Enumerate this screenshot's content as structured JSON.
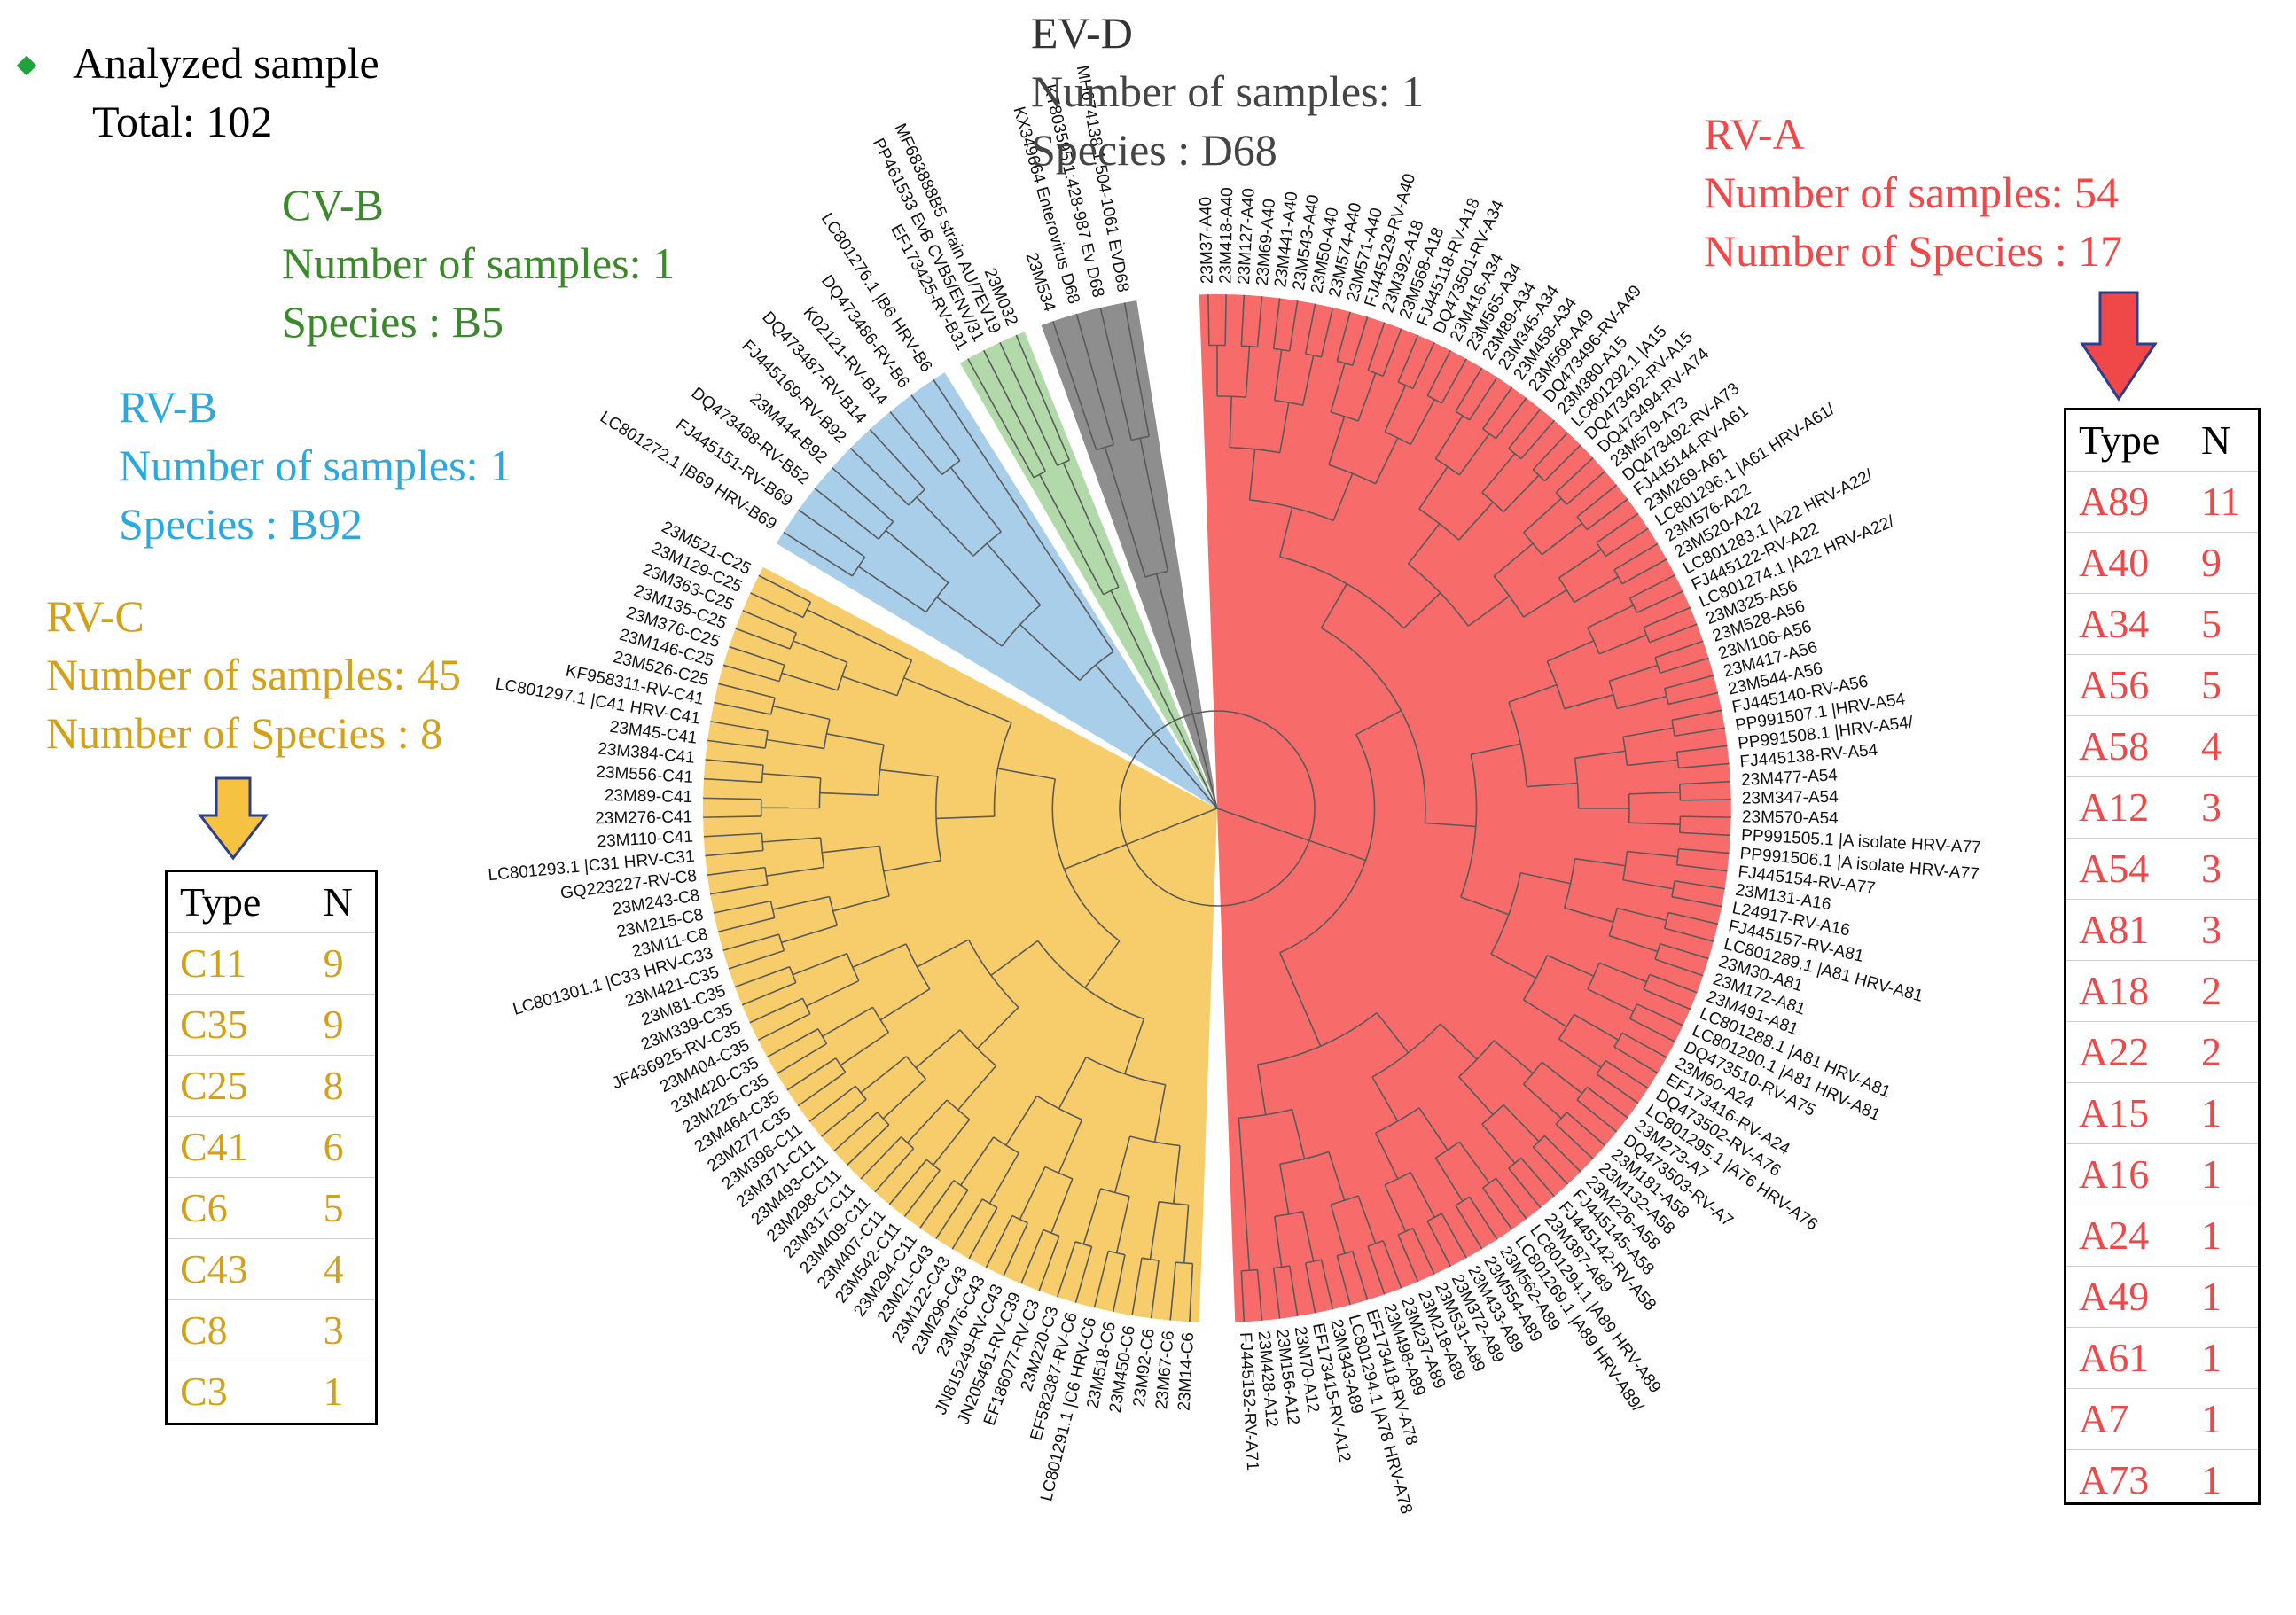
{
  "legend": {
    "marker_color": "#1fa33a",
    "label": "Analyzed sample",
    "total": "Total: 102"
  },
  "colors": {
    "rva": "#f75b5b",
    "rvc": "#f5c85a",
    "rvb": "#9ec9e8",
    "cvb": "#a8d5a0",
    "evd": "#7a7a7a",
    "branch": "#5a5a5a"
  },
  "groups": {
    "evd": {
      "name": "EV-D",
      "samples": "Number of samples: 1",
      "species": "Species : D68",
      "color": "#444444"
    },
    "cvb": {
      "name": "CV-B",
      "samples": "Number of samples: 1",
      "species": "Species : B5",
      "color": "#3a8a2a"
    },
    "rvb": {
      "name": "RV-B",
      "samples": "Number of samples: 1",
      "species": "Species : B92",
      "color": "#2aa8e0"
    },
    "rvc": {
      "name": "RV-C",
      "samples": "Number of samples: 45",
      "species": "Number of Species : 8",
      "color": "#d4a017"
    },
    "rva": {
      "name": "RV-A",
      "samples": "Number of samples: 54",
      "species": "Number of Species : 17",
      "color": "#f04848"
    }
  },
  "rva_table": {
    "header": {
      "type": "Type",
      "n": "N"
    },
    "rows": [
      {
        "type": "A89",
        "n": "11"
      },
      {
        "type": "A40",
        "n": "9"
      },
      {
        "type": "A34",
        "n": "5"
      },
      {
        "type": "A56",
        "n": "5"
      },
      {
        "type": "A58",
        "n": "4"
      },
      {
        "type": "A12",
        "n": "3"
      },
      {
        "type": "A54",
        "n": "3"
      },
      {
        "type": "A81",
        "n": "3"
      },
      {
        "type": "A18",
        "n": "2"
      },
      {
        "type": "A22",
        "n": "2"
      },
      {
        "type": "A15",
        "n": "1"
      },
      {
        "type": "A16",
        "n": "1"
      },
      {
        "type": "A24",
        "n": "1"
      },
      {
        "type": "A49",
        "n": "1"
      },
      {
        "type": "A61",
        "n": "1"
      },
      {
        "type": "A7",
        "n": "1"
      },
      {
        "type": "A73",
        "n": "1"
      }
    ]
  },
  "rvc_table": {
    "header": {
      "type": "Type",
      "n": "N"
    },
    "rows": [
      {
        "type": "C11",
        "n": "9"
      },
      {
        "type": "C35",
        "n": "9"
      },
      {
        "type": "C25",
        "n": "8"
      },
      {
        "type": "C41",
        "n": "6"
      },
      {
        "type": "C6",
        "n": "5"
      },
      {
        "type": "C43",
        "n": "4"
      },
      {
        "type": "C8",
        "n": "3"
      },
      {
        "type": "C3",
        "n": "1"
      }
    ]
  },
  "leaves": {
    "rva": [
      "23M37-A40",
      "23M418-A40",
      "23M127-A40",
      "23M69-A40",
      "23M441-A40",
      "23M543-A40",
      "23M50-A40",
      "23M574-A40",
      "23M571-A40",
      "FJ445129-RV-A40",
      "23M392-A18",
      "23M568-A18",
      "FJ445118-RV-A18",
      "DQ473501-RV-A34",
      "23M416-A34",
      "23M565-A34",
      "23M89-A34",
      "23M345-A34",
      "23M458-A34",
      "23M569-A49",
      "DQ473496-RV-A49",
      "23M380-A15",
      "LC801292.1 |A15",
      "DQ473492-RV-A15",
      "DQ473494-RV-A74",
      "23M579-A73",
      "DQ473492-RV-A73",
      "FJ445144-RV-A61",
      "23M269-A61",
      "LC801296.1 |A61 HRV-A61/",
      "23M576-A22",
      "23M520-A22",
      "LC801283.1 |A22 HRV-A22/",
      "FJ445122-RV-A22",
      "LC801274.1 |A22 HRV-A22/",
      "23M325-A56",
      "23M528-A56",
      "23M106-A56",
      "23M417-A56",
      "23M544-A56",
      "FJ445140-RV-A56",
      "PP991507.1 |HRV-A54",
      "PP991508.1 |HRV-A54/",
      "FJ445138-RV-A54",
      "23M477-A54",
      "23M347-A54",
      "23M570-A54",
      "PP991505.1 |A isolate HRV-A77",
      "PP991506.1 |A isolate HRV-A77",
      "FJ445154-RV-A77",
      "23M131-A16",
      "L24917-RV-A16",
      "FJ445157-RV-A81",
      "LC801289.1 |A81 HRV-A81",
      "23M30-A81",
      "23M172-A81",
      "23M491-A81",
      "LC801288.1 |A81 HRV-A81",
      "LC801290.1 |A81 HRV-A81",
      "DQ473510-RV-A75",
      "23M60-A24",
      "EF173416-RV-A24",
      "DQ473502-RV-A76",
      "LC801295.1 |A76 HRV-A76",
      "23M273-A7",
      "DQ473503-RV-A7",
      "23M181-A58",
      "23M132-A58",
      "23M226-A58",
      "FJ445145-A58",
      "FJ445142-RV-A58",
      "23M387-A89",
      "LC801294.1 |A89 HRV-A89",
      "LC801269.1 |A89 HRV-A89/",
      "23M562-A89",
      "23M554-A89",
      "23M433-A89",
      "23M372-A89",
      "23M531-A89",
      "23M218-A89",
      "23M237-A89",
      "23M498-A89",
      "EF173418-RV-A78",
      "LC801294.1 |A78 HRV-A78",
      "23M343-A89",
      "EF173415-RV-A12",
      "23M70-A12",
      "23M156-A12",
      "23M428-A12",
      "FJ445152-RV-A71"
    ],
    "rvc": [
      "23M14-C6",
      "23M67-C6",
      "23M92-C6",
      "23M450-C6",
      "23M518-C6",
      "LC801291.1 |C6 HRV-C6",
      "EF582387-RV-C6",
      "23M220-C3",
      "EF186077-RV-C3",
      "JN205461-RV-C39",
      "JN815249-RV-C43",
      "23M76-C43",
      "23M296-C43",
      "23M122-C43",
      "23M21-C43",
      "23M294-C11",
      "23M542-C11",
      "23M407-C11",
      "23M409-C11",
      "23M317-C11",
      "23M298-C11",
      "23M493-C11",
      "23M371-C11",
      "23M398-C11",
      "23M277-C35",
      "23M464-C35",
      "23M225-C35",
      "23M420-C35",
      "23M404-C35",
      "JF436925-RV-C35",
      "23M339-C35",
      "23M81-C35",
      "23M421-C35",
      "LC801301.1 |C33 HRV-C33",
      "23M11-C8",
      "23M215-C8",
      "23M243-C8",
      "GQ223227-RV-C8",
      "LC801293.1 |C31 HRV-C31",
      "23M110-C41",
      "23M276-C41",
      "23M89-C41",
      "23M556-C41",
      "23M384-C41",
      "23M45-C41",
      "LC801297.1 |C41 HRV-C41",
      "KF958311-RV-C41",
      "23M526-C25",
      "23M146-C25",
      "23M376-C25",
      "23M135-C25",
      "23M363-C25",
      "23M129-C25",
      "23M521-C25"
    ],
    "rvb": [
      "LC801272.1 |B69 HRV-B69",
      "FJ445151-RV-B69",
      "DQ473488-RV-B52",
      "23M444-B92",
      "FJ445169-RV-B92",
      "DQ473487-RV-B14",
      "K02121-RV-B14",
      "DQ473486-RV-B6",
      "LC801276.1 |B6 HRV-B6"
    ],
    "cvb": [
      "EF173425-RV-B31",
      "PP461533 EvB CVB5/ENV/31",
      "MF683888B5 strain AU/7EV19",
      "23M032"
    ],
    "evd": [
      "23M534",
      "KX349664 Enterovirus D68",
      "KT803595.1:428-987 Ev D68",
      "MH674138.1:504-1061 EVD68"
    ]
  }
}
